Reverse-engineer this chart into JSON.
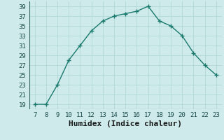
{
  "x": [
    7,
    8,
    9,
    10,
    11,
    12,
    13,
    14,
    15,
    16,
    17,
    18,
    19,
    20,
    21,
    22,
    23
  ],
  "y": [
    19,
    19,
    23,
    28,
    31,
    34,
    36,
    37,
    37.5,
    38,
    39,
    36,
    35,
    33,
    29.5,
    27,
    25
  ],
  "line_color": "#1a7a6e",
  "marker": "+",
  "marker_size": 4,
  "marker_linewidth": 1.0,
  "line_width": 1.0,
  "xlabel": "Humidex (Indice chaleur)",
  "xlim": [
    6.5,
    23.5
  ],
  "ylim": [
    18,
    40
  ],
  "xticks": [
    7,
    8,
    9,
    10,
    11,
    12,
    13,
    14,
    15,
    16,
    17,
    18,
    19,
    20,
    21,
    22,
    23
  ],
  "yticks": [
    19,
    21,
    23,
    25,
    27,
    29,
    31,
    33,
    35,
    37,
    39
  ],
  "bg_color": "#ceeaea",
  "grid_color": "#b0d8d8",
  "tick_label_fontsize": 6.5,
  "xlabel_fontsize": 8
}
